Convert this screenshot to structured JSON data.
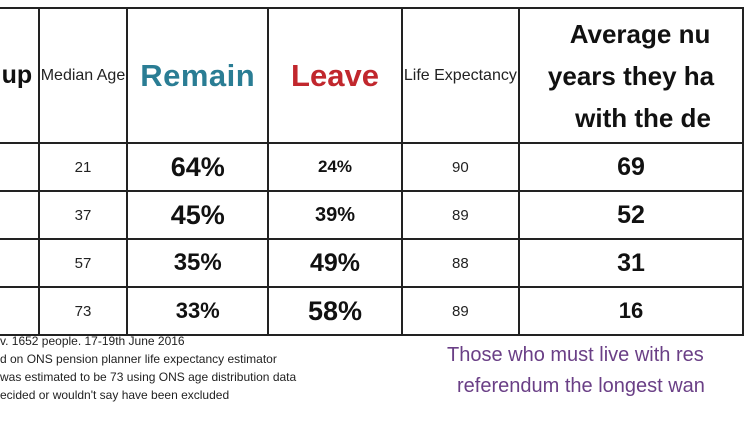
{
  "table": {
    "headers": {
      "group": "up",
      "median_age": "Median Age",
      "remain": "Remain",
      "leave": "Leave",
      "life_expectancy": "Life Expectancy",
      "avg_line1": "Average nu",
      "avg_line2": "years they ha",
      "avg_line3": "with the de"
    },
    "rows": [
      {
        "median_age": "21",
        "remain": "64%",
        "leave": "24%",
        "life_expectancy": "90",
        "avg_years": "69"
      },
      {
        "median_age": "37",
        "remain": "45%",
        "leave": "39%",
        "life_expectancy": "89",
        "avg_years": "52"
      },
      {
        "median_age": "57",
        "remain": "35%",
        "leave": "49%",
        "life_expectancy": "88",
        "avg_years": "31"
      },
      {
        "median_age": "73",
        "remain": "33%",
        "leave": "58%",
        "life_expectancy": "89",
        "avg_years": "16"
      }
    ]
  },
  "notes": [
    "v. 1652 people. 17-19th June 2016",
    "d on ONS pension planner life expectancy estimator",
    "was estimated to be 73 using ONS age distribution data",
    "ecided or wouldn't say have been excluded"
  ],
  "quote": {
    "line1": "Those who must live with res",
    "line2": "referendum the longest wan"
  }
}
